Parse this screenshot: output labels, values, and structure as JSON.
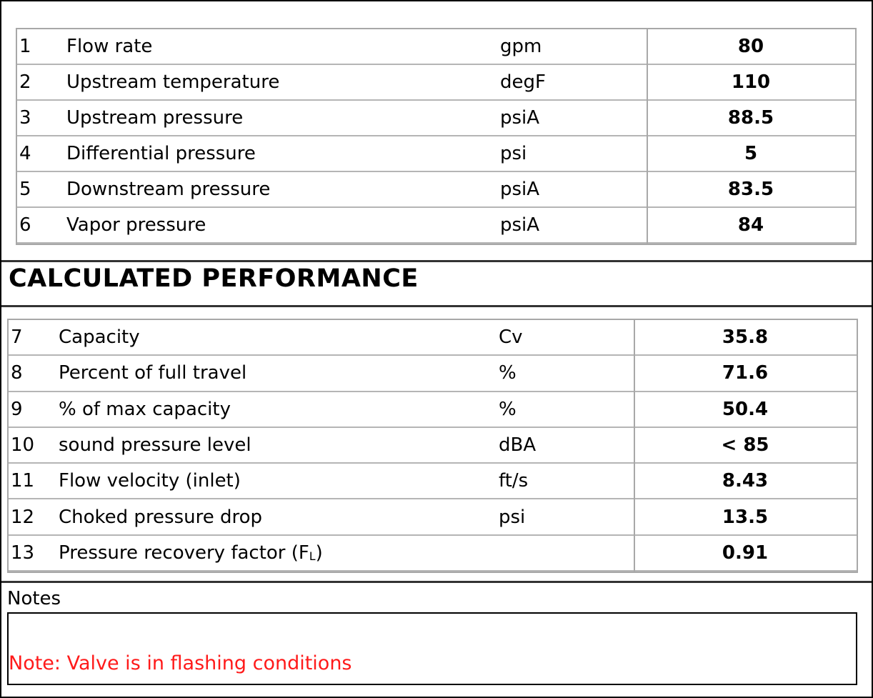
{
  "inputs": {
    "rows": [
      {
        "number": 1,
        "label": "Flow rate",
        "unit": "gpm",
        "value": 80
      },
      {
        "number": 2,
        "label": "Upstream temperature",
        "unit": "degF",
        "value": 110
      },
      {
        "number": 3,
        "label": "Upstream pressure",
        "unit": "psiA",
        "value": 88.5
      },
      {
        "number": 4,
        "label": "Differential pressure",
        "unit": "psi",
        "value": 5
      },
      {
        "number": 5,
        "label": "Downstream pressure",
        "unit": "psiA",
        "value": 83.5
      },
      {
        "number": 6,
        "label": "Vapor pressure",
        "unit": "psiA",
        "value": 84
      }
    ]
  },
  "calculated_performance": {
    "title": "CALCULATED PERFORMANCE",
    "rows": [
      {
        "number": 7,
        "label": "Capacity",
        "unit": "Cv",
        "value": 35.8
      },
      {
        "number": 8,
        "label": "Percent of full travel",
        "unit": "%",
        "value": 71.6
      },
      {
        "number": 9,
        "label": "% of max capacity",
        "unit": "%",
        "value": 50.4
      },
      {
        "number": 10,
        "label": "sound pressure level",
        "unit": "dBA",
        "value": "< 85"
      },
      {
        "number": 11,
        "label": "Flow velocity (inlet)",
        "unit": "ft/s",
        "value": 8.43
      },
      {
        "number": 12,
        "label": "Choked pressure drop",
        "unit": "psi",
        "value": 13.5
      },
      {
        "number": 13,
        "label": "Pressure recovery factor (F",
        "label_subscript": "L",
        "label_end": ")",
        "value": 0.91
      }
    ]
  },
  "notes": {
    "label": "Notes",
    "text": "Note: Valve is in flashing conditions"
  }
}
